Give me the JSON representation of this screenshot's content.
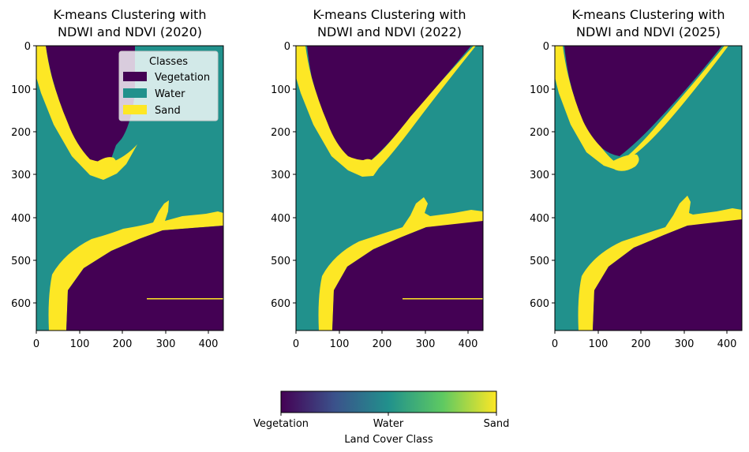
{
  "chart_data": [
    {
      "type": "heatmap",
      "title_lines": [
        "K-means Clustering with",
        "NDWI and NDVI (2020)"
      ],
      "x_ticks": [
        "0",
        "100",
        "200",
        "300",
        "400"
      ],
      "y_ticks": [
        "0",
        "100",
        "200",
        "300",
        "400",
        "500",
        "600"
      ],
      "xlim": [
        0,
        435
      ],
      "ylim": [
        0,
        665
      ],
      "y_inverted": true,
      "classes": [
        "Vegetation",
        "Water",
        "Sand"
      ],
      "legend": {
        "title": "Classes",
        "placement": "upper-right",
        "items": [
          {
            "label": "Vegetation"
          },
          {
            "label": "Water"
          },
          {
            "label": "Sand"
          }
        ]
      }
    },
    {
      "type": "heatmap",
      "title_lines": [
        "K-means Clustering with",
        "NDWI and NDVI (2022)"
      ],
      "x_ticks": [
        "0",
        "100",
        "200",
        "300",
        "400"
      ],
      "y_ticks": [
        "0",
        "100",
        "200",
        "300",
        "400",
        "500",
        "600"
      ],
      "xlim": [
        0,
        435
      ],
      "ylim": [
        0,
        665
      ],
      "y_inverted": true,
      "classes": [
        "Vegetation",
        "Water",
        "Sand"
      ]
    },
    {
      "type": "heatmap",
      "title_lines": [
        "K-means Clustering with",
        "NDWI and NDVI (2025)"
      ],
      "x_ticks": [
        "0",
        "100",
        "200",
        "300",
        "400"
      ],
      "y_ticks": [
        "0",
        "100",
        "200",
        "300",
        "400",
        "500",
        "600"
      ],
      "xlim": [
        0,
        435
      ],
      "ylim": [
        0,
        665
      ],
      "y_inverted": true,
      "classes": [
        "Vegetation",
        "Water",
        "Sand"
      ]
    }
  ],
  "colorbar": {
    "label": "Land Cover Class",
    "tick_labels": [
      "Vegetation",
      "Water",
      "Sand"
    ]
  },
  "colors": {
    "vegetation": "#440154",
    "water": "#21918c",
    "sand": "#fde725"
  }
}
